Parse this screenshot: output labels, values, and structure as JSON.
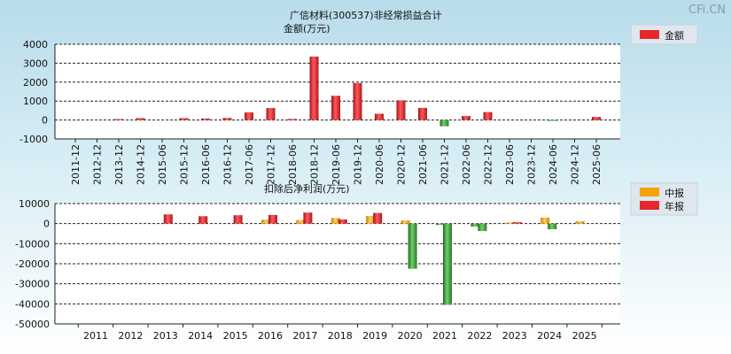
{
  "watermark": "CFi.CN",
  "colors": {
    "red": "#e8272c",
    "green": "#3f9a3c",
    "orange": "#f5a30c"
  },
  "chart_data": [
    {
      "type": "bar",
      "title": "广信材料(300537)非经常损益合计",
      "subtitle": "金额(万元)",
      "legend": [
        {
          "name": "金额",
          "color": "#e8272c"
        }
      ],
      "legend_placement": "top-right",
      "grid": true,
      "ylim": [
        -1000,
        4000
      ],
      "yticks": [
        4000,
        3000,
        2000,
        1000,
        0,
        -1000
      ],
      "categories": [
        "2011-12",
        "2012-12",
        "2013-12",
        "2014-12",
        "2015-06",
        "2015-12",
        "2016-06",
        "2016-12",
        "2017-06",
        "2017-12",
        "2018-06",
        "2018-12",
        "2019-06",
        "2019-12",
        "2020-06",
        "2020-12",
        "2021-06",
        "2021-12",
        "2022-06",
        "2022-12",
        "2023-06",
        "2023-12",
        "2024-06",
        "2024-12",
        "2025-06"
      ],
      "values": [
        0,
        0,
        50,
        100,
        0,
        100,
        80,
        110,
        400,
        630,
        60,
        3350,
        1280,
        1950,
        330,
        1040,
        640,
        -330,
        210,
        420,
        0,
        0,
        -40,
        0,
        160
      ]
    },
    {
      "type": "bar",
      "title": "扣除后净利润(万元)",
      "legend": [
        {
          "name": "中报",
          "color": "#f5a30c"
        },
        {
          "name": "年报",
          "color": "#e8272c"
        }
      ],
      "legend_placement": "top-right",
      "grid": true,
      "ylim": [
        -50000,
        10000
      ],
      "yticks": [
        10000,
        0,
        -10000,
        -20000,
        -30000,
        -40000,
        -50000
      ],
      "categories": [
        "2011",
        "2012",
        "2013",
        "2014",
        "2015",
        "2016",
        "2017",
        "2018",
        "2019",
        "2020",
        "2021",
        "2022",
        "2023",
        "2024",
        "2025"
      ],
      "series": [
        {
          "name": "中报",
          "values": [
            null,
            null,
            null,
            null,
            null,
            2000,
            1800,
            2800,
            3800,
            1600,
            -700,
            -1500,
            600,
            3000,
            1200
          ]
        },
        {
          "name": "年报",
          "values": [
            null,
            null,
            4600,
            3700,
            4200,
            4300,
            5500,
            2100,
            5300,
            -22500,
            -40500,
            -3700,
            700,
            -2800,
            null
          ]
        }
      ]
    }
  ]
}
